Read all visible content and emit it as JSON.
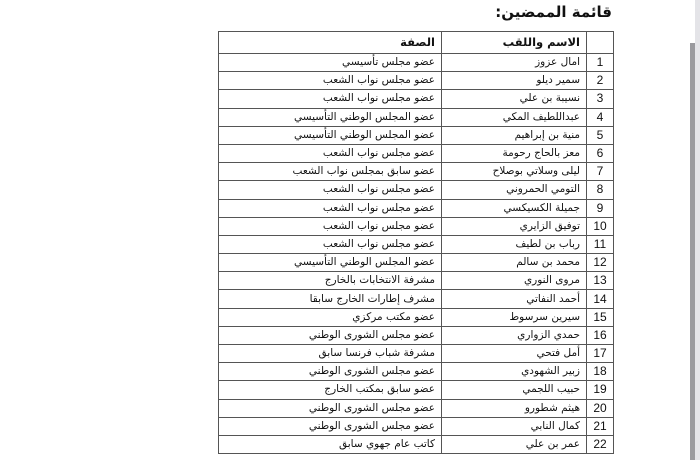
{
  "title": "قائمة الممضين:",
  "table": {
    "headers": {
      "num": "",
      "name": "الاسم واللقب",
      "role": "الصفة"
    },
    "rows": [
      {
        "num": "1",
        "name": "امال عزوز",
        "role": "عضو مجلس تأسيسي"
      },
      {
        "num": "2",
        "name": "سمير ديلو",
        "role": "عضو مجلس نواب الشعب"
      },
      {
        "num": "3",
        "name": "نسيبة بن علي",
        "role": "عضو مجلس نواب الشعب"
      },
      {
        "num": "4",
        "name": "عبداللطيف المكي",
        "role": "عضو المجلس الوطني التأسيسي"
      },
      {
        "num": "5",
        "name": "منية بن إبراهيم",
        "role": "عضو المجلس الوطني التأسيسي"
      },
      {
        "num": "6",
        "name": "معز بالحاج رحومة",
        "role": "عضو مجلس نواب الشعب"
      },
      {
        "num": "7",
        "name": "ليلى وسلاتي بوصلاح",
        "role": "عضو سابق بمجلس نواب الشعب"
      },
      {
        "num": "8",
        "name": "التومي الحمروني",
        "role": "عضو مجلس نواب الشعب"
      },
      {
        "num": "9",
        "name": "جميلة الكسيكسي",
        "role": "عضو مجلس نواب الشعب"
      },
      {
        "num": "10",
        "name": "توفيق الزايري",
        "role": "عضو مجلس نواب الشعب"
      },
      {
        "num": "11",
        "name": "رباب بن لطيف",
        "role": "عضو مجلس نواب الشعب"
      },
      {
        "num": "12",
        "name": "محمد بن سالم",
        "role": "عضو المجلس الوطني التأسيسي"
      },
      {
        "num": "13",
        "name": "مروى النوري",
        "role": "مشرفة الانتخابات بالخارج"
      },
      {
        "num": "14",
        "name": "أحمد النفاتي",
        "role": "مشرف إطارات الخارج سابقا"
      },
      {
        "num": "15",
        "name": "سيرين سرسوط",
        "role": "عضو مكتب مركزي"
      },
      {
        "num": "16",
        "name": "حمدي الزواري",
        "role": "عضو مجلس الشورى الوطني"
      },
      {
        "num": "17",
        "name": "أمل فتحي",
        "role": "مشرفة شباب فرنسا سابق"
      },
      {
        "num": "18",
        "name": "زبير الشهودي",
        "role": "عضو مجلس الشورى الوطني"
      },
      {
        "num": "19",
        "name": "حبيب اللجمي",
        "role": "عضو سابق بمكتب الخارج"
      },
      {
        "num": "20",
        "name": "هيثم شطورو",
        "role": "عضو مجلس الشورى الوطني"
      },
      {
        "num": "21",
        "name": "كمال النابي",
        "role": "عضو مجلس الشورى الوطني"
      },
      {
        "num": "22",
        "name": "عمر بن علي",
        "role": "كاتب عام جهوي سابق"
      }
    ]
  }
}
